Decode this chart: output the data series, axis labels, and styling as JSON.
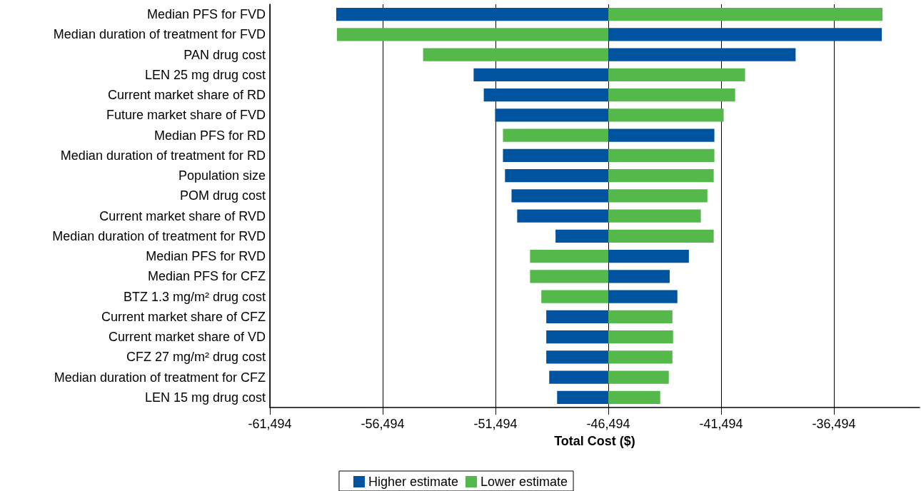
{
  "chart_data": {
    "type": "bar",
    "orientation": "horizontal",
    "xlabel": "Total Cost ($)",
    "categories": [
      "Median PFS for FVD",
      "Median duration of treatment for FVD",
      "PAN drug cost",
      "LEN 25 mg drug cost",
      "Current market share of RD",
      "Future market share of FVD",
      "Median PFS for RD",
      "Median duration of treatment for RD",
      "Population size",
      "POM drug cost",
      "Current market share of RVD",
      "Median duration of treatment for RVD",
      "Median PFS for RVD",
      "Median PFS for CFZ",
      "BTZ 1.3 mg/m² drug cost",
      "Current market share of CFZ",
      "Current market share of VD",
      "CFZ 27 mg/m² drug cost",
      "Median duration of treatment for CFZ",
      "LEN 15 mg drug cost"
    ],
    "series": [
      {
        "name": "Higher estimate",
        "color": "#00539f",
        "base": [
          -46494,
          -46494,
          -46494,
          -46494,
          -46494,
          -46494,
          -46494,
          -46494,
          -46494,
          -46494,
          -46494,
          -46494,
          -46494,
          -46494,
          -46494,
          -46494,
          -46494,
          -46494,
          -46494,
          -46494
        ],
        "values": [
          -12060,
          12120,
          8300,
          -5970,
          -5520,
          -5020,
          4700,
          -4670,
          -4580,
          -4290,
          -4040,
          -2340,
          3570,
          2720,
          3060,
          -2750,
          -2750,
          -2750,
          -2620,
          -2270
        ]
      },
      {
        "name": "Lower estimate",
        "color": "#55b84b",
        "base": [
          -46494,
          -46494,
          -46494,
          -46494,
          -46494,
          -46494,
          -46494,
          -46494,
          -46494,
          -46494,
          -46494,
          -46494,
          -46494,
          -46494,
          -46494,
          -46494,
          -46494,
          -46494,
          -46494,
          -46494
        ],
        "values": [
          12150,
          -12030,
          -8210,
          6060,
          5620,
          5110,
          -4670,
          4700,
          4670,
          4390,
          4100,
          4670,
          -3470,
          -3470,
          -2970,
          2840,
          2870,
          2840,
          2680,
          2300
        ]
      }
    ],
    "xlim": [
      -61494,
      -32700
    ],
    "xticks": [
      {
        "value": -61494,
        "label": "-61,494"
      },
      {
        "value": -56494,
        "label": "-56,494"
      },
      {
        "value": -51494,
        "label": "-51,494"
      },
      {
        "value": -46494,
        "label": "-46,494"
      },
      {
        "value": -41494,
        "label": "-41,494"
      },
      {
        "value": -36494,
        "label": "-36,494"
      }
    ],
    "grid": "x",
    "legend": "bottom"
  }
}
